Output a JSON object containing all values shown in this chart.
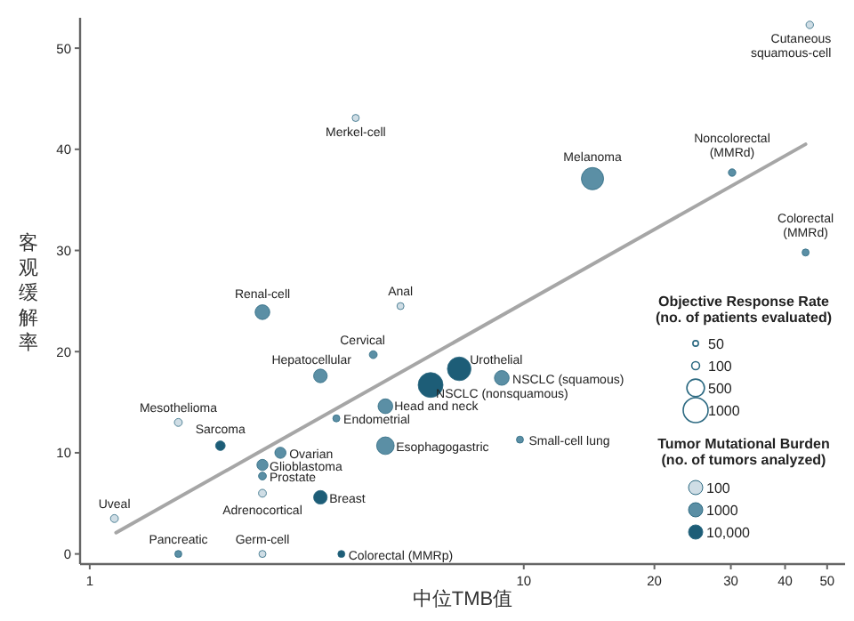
{
  "chart_data": {
    "type": "bubble",
    "xlabel": "中位TMB值",
    "ylabel": "客观缓解率",
    "log": "x",
    "xlim": [
      0.95,
      55
    ],
    "ylim": [
      -1,
      53
    ],
    "xticks": [
      1,
      10,
      20,
      30,
      40,
      50
    ],
    "yticks": [
      0,
      10,
      20,
      30,
      40,
      50
    ],
    "grid": false,
    "legend": "right",
    "legend_title": "Tumor Mutational Burden\n(no. of tumors analyzed)",
    "size_legend": [
      50,
      100,
      500,
      1000
    ],
    "series": [
      {
        "name": "100",
        "color": "#cfdde5",
        "x": [
          45.6,
          4.1,
          5.2,
          1.6,
          2.5,
          1.14,
          2.5
        ],
        "values": [
          52.3,
          43.1,
          24.5,
          13.0,
          6.0,
          3.5,
          0
        ],
        "sizes": [
          90,
          80,
          80,
          100,
          100,
          100,
          80
        ]
      },
      {
        "name": "1000",
        "color": "#5b8fa5",
        "x": [
          14.4,
          30.2,
          44.6,
          2.5,
          4.5,
          3.4,
          8.9,
          4.8,
          3.7,
          4.8,
          9.8,
          2.75,
          2.5,
          2.5,
          1.6
        ],
        "values": [
          37.1,
          37.7,
          29.8,
          23.9,
          19.7,
          17.6,
          17.4,
          14.6,
          13.4,
          10.7,
          11.3,
          10.0,
          8.8,
          7.7,
          0
        ],
        "sizes": [
          800,
          90,
          80,
          350,
          100,
          300,
          350,
          350,
          80,
          500,
          80,
          200,
          200,
          100,
          80
        ]
      },
      {
        "name": "10,000",
        "color": "#1d5d77",
        "x": [
          7.1,
          6.1,
          2.0,
          3.4,
          3.8
        ],
        "values": [
          18.3,
          16.7,
          10.7,
          5.6,
          0
        ],
        "sizes": [
          900,
          1000,
          150,
          300,
          80
        ]
      },
      {
        "type": "line",
        "color": "#a6a6a6",
        "x": [
          1.15,
          44.6
        ],
        "values": [
          2.1,
          40.5
        ]
      }
    ],
    "annotations": [
      "Objective Response Rate\n(no. of patients evaluated)",
      {
        "text": "Cutaneous\nsquamous-cell",
        "x": 45.6,
        "y": 52.3
      },
      {
        "text": "Merkel-cell",
        "x": 4.1,
        "y": 43.1
      },
      {
        "text": "Anal",
        "x": 5.2,
        "y": 24.5
      },
      {
        "text": "Mesothelioma",
        "x": 1.6,
        "y": 13.0
      },
      {
        "text": "Adrenocortical",
        "x": 2.5,
        "y": 6.0
      },
      {
        "text": "Uveal",
        "x": 1.14,
        "y": 3.5
      },
      {
        "text": "Germ-cell",
        "x": 2.5,
        "y": 0
      },
      {
        "text": "Melanoma",
        "x": 14.4,
        "y": 37.1
      },
      {
        "text": "Noncolorectal\n(MMRd)",
        "x": 30.2,
        "y": 37.7
      },
      {
        "text": "Colorectal\n(MMRd)",
        "x": 44.6,
        "y": 29.8
      },
      {
        "text": "Renal-cell",
        "x": 2.5,
        "y": 23.9
      },
      {
        "text": "Cervical",
        "x": 4.5,
        "y": 19.7
      },
      {
        "text": "Hepatocellular",
        "x": 3.4,
        "y": 17.6
      },
      {
        "text": "NSCLC (squamous)",
        "x": 8.9,
        "y": 17.4
      },
      {
        "text": "Head and neck",
        "x": 4.8,
        "y": 14.6
      },
      {
        "text": "Endometrial",
        "x": 3.7,
        "y": 13.4
      },
      {
        "text": "Esophagogastric",
        "x": 4.8,
        "y": 10.7
      },
      {
        "text": "Small-cell lung",
        "x": 9.8,
        "y": 11.3
      },
      {
        "text": "Ovarian",
        "x": 2.75,
        "y": 10.0
      },
      {
        "text": "Glioblastoma",
        "x": 2.5,
        "y": 8.8
      },
      {
        "text": "Prostate",
        "x": 2.5,
        "y": 7.7
      },
      {
        "text": "Pancreatic",
        "x": 1.6,
        "y": 0
      },
      {
        "text": "Urothelial",
        "x": 7.1,
        "y": 18.3
      },
      {
        "text": "NSCLC (nonsquamous)",
        "x": 6.1,
        "y": 16.7
      },
      {
        "text": "Sarcoma",
        "x": 2.0,
        "y": 10.7
      },
      {
        "text": "Breast",
        "x": 3.4,
        "y": 5.6
      },
      {
        "text": "Colorectal (MMRp)",
        "x": 3.8,
        "y": 0
      }
    ]
  }
}
